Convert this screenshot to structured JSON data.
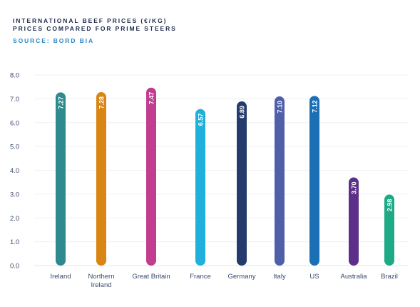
{
  "header": {
    "title_line1": "INTERNATIONAL BEEF PRICES (€/KG)",
    "title_line2": "PRICES COMPARED FOR PRIME STEERS",
    "source": "SOURCE: BORD BIA"
  },
  "chart_data": {
    "type": "bar",
    "title": "INTERNATIONAL BEEF PRICES (€/KG)",
    "subtitle": "PRICES COMPARED FOR PRIME STEERS",
    "source": "SOURCE: BORD BIA",
    "xlabel": "",
    "ylabel": "",
    "ylim": [
      0,
      8
    ],
    "y_ticks": [
      "0.0",
      "1.0",
      "2.0",
      "3.0",
      "4.0",
      "5.0",
      "6.0",
      "7.0",
      "8.0"
    ],
    "grid": true,
    "categories": [
      [
        "Ireland"
      ],
      [
        "Northern",
        "Ireland"
      ],
      [
        "Great Britain"
      ],
      [
        "France"
      ],
      [
        "Germany"
      ],
      [
        "Italy"
      ],
      [
        "US"
      ],
      [
        "Australia"
      ],
      [
        "Brazil"
      ]
    ],
    "values": [
      7.27,
      7.28,
      7.47,
      6.57,
      6.89,
      7.1,
      7.12,
      3.7,
      2.98
    ],
    "value_labels": [
      "7.27",
      "7.28",
      "7.47",
      "6.57",
      "6.89",
      "7.10",
      "7.12",
      "3.70",
      "2.98"
    ],
    "colors": [
      "#2e8a8f",
      "#d98614",
      "#c13e8f",
      "#1fb0dc",
      "#243b6b",
      "#4f5fa8",
      "#1b6fb5",
      "#5c2f8a",
      "#1faa86"
    ]
  }
}
